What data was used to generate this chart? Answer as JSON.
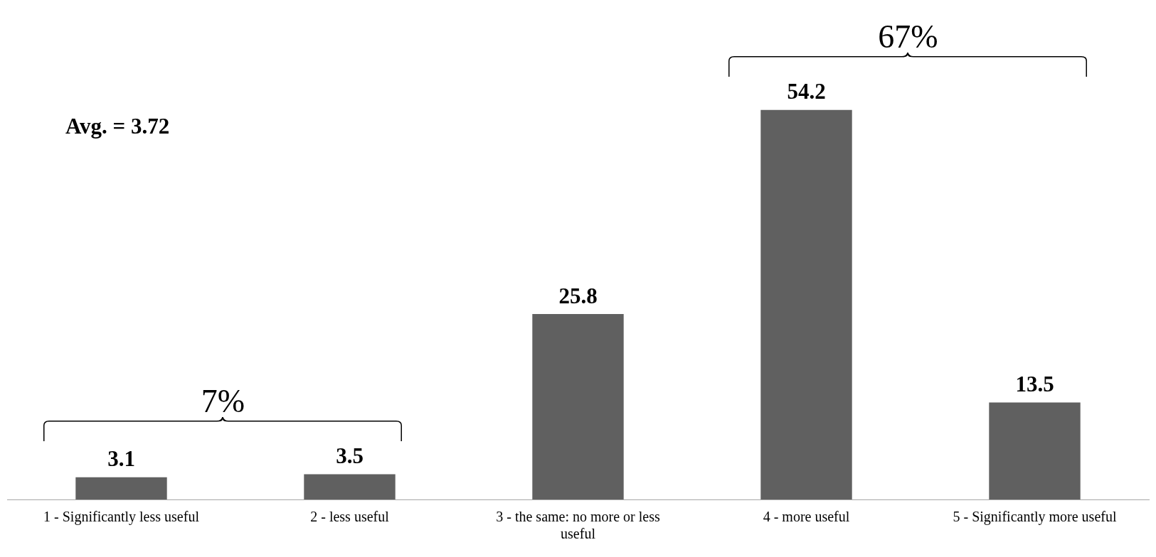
{
  "chart_data": {
    "type": "bar",
    "categories": [
      "1 - Significantly less useful",
      "2 - less useful",
      "3 - the same: no more or less useful",
      "4 - more useful",
      "5 - Significantly more useful"
    ],
    "values": [
      3.1,
      3.5,
      25.8,
      54.2,
      13.5
    ],
    "color": "#606060",
    "data_labels": true,
    "grid": false,
    "legend": false,
    "annotations": [
      "Avg. = 3.72",
      "7%",
      "67%"
    ]
  }
}
